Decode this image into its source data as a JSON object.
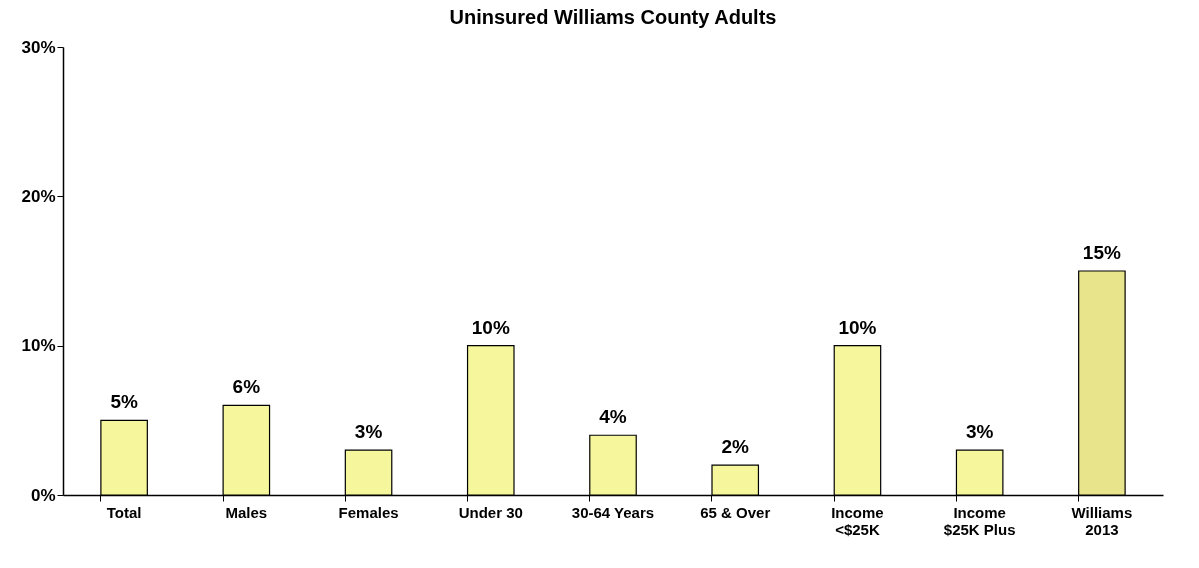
{
  "chart_data": {
    "type": "bar",
    "title": "Uninsured Williams County Adults",
    "categories": [
      "Total",
      "Males",
      "Females",
      "Under 30",
      "30-64 Years",
      "65 & Over",
      "Income\n<$25K",
      "Income\n$25K Plus",
      "Williams\n2013"
    ],
    "values": [
      5,
      6,
      3,
      10,
      4,
      2,
      10,
      3,
      15
    ],
    "value_labels": [
      "5%",
      "6%",
      "3%",
      "10%",
      "4%",
      "2%",
      "10%",
      "3%",
      "15%"
    ],
    "colors": [
      "#f6f69c",
      "#f6f69c",
      "#f6f69c",
      "#f6f69c",
      "#f6f69c",
      "#f6f69c",
      "#f6f69c",
      "#f6f69c",
      "#e8e48c"
    ],
    "ylim": [
      0,
      30
    ],
    "yticks": [
      {
        "value": 0,
        "label": "0%"
      },
      {
        "value": 10,
        "label": "10%"
      },
      {
        "value": 20,
        "label": "20%"
      },
      {
        "value": 30,
        "label": "30%"
      }
    ]
  }
}
